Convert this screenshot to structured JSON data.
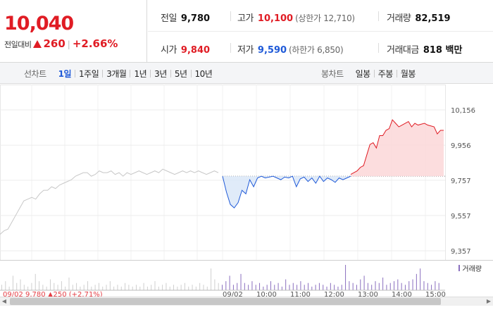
{
  "quote": {
    "price": "10,040",
    "change_label": "전일대비",
    "change_abs": "260",
    "change_pct": "+2.66%",
    "prev_close_label": "전일",
    "prev_close": "9,780",
    "open_label": "시가",
    "open": "9,840",
    "high_label": "고가",
    "high": "10,100",
    "upper_limit": "(상한가 12,710)",
    "low_label": "저가",
    "low": "9,590",
    "lower_limit": "(하한가 6,850)",
    "volume_label": "거래량",
    "volume": "82,519",
    "amount_label": "거래대금",
    "amount": "818 백만"
  },
  "colors": {
    "up": "#e01c24",
    "down": "#1f5ad8",
    "volume": "#8a6fbf"
  },
  "tabs": {
    "line_label": "선차트",
    "line_items": [
      {
        "label": "1일",
        "active": true
      },
      {
        "label": "1주일",
        "active": false
      },
      {
        "label": "3개월",
        "active": false
      },
      {
        "label": "1년",
        "active": false
      },
      {
        "label": "3년",
        "active": false
      },
      {
        "label": "5년",
        "active": false
      },
      {
        "label": "10년",
        "active": false
      }
    ],
    "candle_label": "봉차트",
    "candle_items": [
      {
        "label": "일봉"
      },
      {
        "label": "주봉"
      },
      {
        "label": "월봉"
      }
    ]
  },
  "chart_data": {
    "type": "line",
    "ylim": [
      9357,
      10156
    ],
    "y_ticks": [
      "10,156",
      "9,956",
      "9,757",
      "9,557",
      "9,357"
    ],
    "y_tick_values": [
      10156,
      9956,
      9757,
      9557,
      9357
    ],
    "reference_line": 9780,
    "x_ticks": [
      "09/02",
      "10:00",
      "11:00",
      "12:00",
      "13:00",
      "14:00",
      "15:00"
    ],
    "header_text": "09/02  9,780 ▲250 (+2.71%)",
    "volume_legend": "거래량",
    "series": [
      {
        "values": [
          9450,
          9470,
          9480,
          9520,
          9560,
          9600,
          9640,
          9650,
          9660,
          9650,
          9680,
          9700,
          9700,
          9720,
          9710,
          9730,
          9740,
          9750,
          9760,
          9780,
          9790,
          9800,
          9800,
          9780,
          9790,
          9810,
          9800,
          9800,
          9810,
          9790,
          9800,
          9780,
          9800,
          9790,
          9800,
          9810,
          9800,
          9790,
          9800,
          9810,
          9800,
          9820,
          9810,
          9800,
          9790,
          9800,
          9810,
          9800,
          9810,
          9800,
          9810,
          9800,
          9790,
          9800,
          9810,
          9800
        ]
      },
      {
        "values": [
          9780,
          9690,
          9620,
          9600,
          9630,
          9700,
          9680,
          9760,
          9720,
          9770,
          9780,
          9770,
          9775,
          9780,
          9770,
          9760,
          9775,
          9770,
          9780,
          9720,
          9765,
          9775,
          9750,
          9770,
          9740,
          9780,
          9750,
          9770,
          9760,
          9745,
          9770,
          9760,
          9770,
          9780
        ]
      },
      {
        "values": [
          9790,
          9800,
          9810,
          9830,
          9840,
          9900,
          9960,
          9970,
          9940,
          10010,
          10010,
          10040,
          10050,
          10100,
          10080,
          10060,
          10070,
          10080,
          10090,
          10060,
          10080,
          10070,
          10075,
          10080,
          10070,
          10065,
          10060,
          10020,
          10040,
          10040
        ]
      }
    ],
    "volume": [
      3,
      5,
      2,
      8,
      4,
      6,
      3,
      2,
      4,
      9,
      5,
      3,
      2,
      6,
      4,
      3,
      5,
      2,
      7,
      3,
      4,
      2,
      3,
      5,
      2,
      3,
      4,
      2,
      3,
      5,
      2,
      3,
      2,
      4,
      3,
      2,
      3,
      2,
      4,
      2,
      3,
      5,
      2,
      3,
      4,
      2,
      3,
      2,
      3,
      4,
      2,
      3,
      2,
      4,
      3,
      2,
      12,
      6,
      4,
      3,
      5,
      8,
      3,
      4,
      9,
      4,
      3,
      5,
      3,
      4,
      2,
      3,
      5,
      3,
      4,
      2,
      6,
      3,
      4,
      3,
      5,
      3,
      4,
      2,
      3,
      4,
      3,
      2,
      4,
      3,
      2,
      3,
      14,
      5,
      4,
      3,
      6,
      8,
      4,
      3,
      5,
      4,
      7,
      3,
      4,
      5,
      6,
      4,
      3,
      5,
      6,
      9,
      12,
      5,
      4,
      3,
      5,
      4
    ]
  },
  "scroll": {
    "left": "◀",
    "right": "▶"
  }
}
